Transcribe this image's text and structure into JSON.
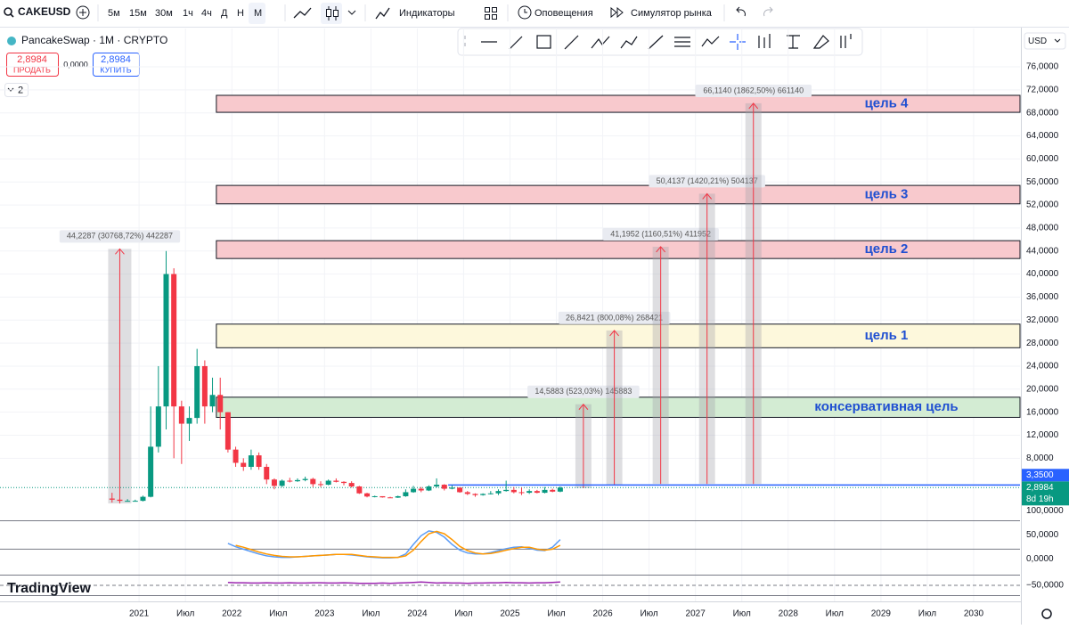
{
  "toolbar": {
    "symbol": "CAKEUSD",
    "intervals": [
      "5м",
      "15м",
      "30м",
      "1ч",
      "4ч",
      "Д",
      "Н",
      "М"
    ],
    "active_interval": 7,
    "indicators": "Индикаторы",
    "alerts": "Оповещения",
    "replay": "Симулятор рынка"
  },
  "legend": {
    "title": "PancakeSwap · 1M · CRYPTO",
    "sell_price": "2,8984",
    "sell_label": "ПРОДАТЬ",
    "spread": "0,0000",
    "buy_price": "2,8984",
    "buy_label": "КУПИТЬ",
    "indicators_count": "2"
  },
  "currency": "USD",
  "logo": "TradingView",
  "chart_data": {
    "type": "candlestick",
    "up_color": "#089981",
    "down_color": "#f23645",
    "grid": true,
    "x": [
      "2020-09",
      "2020-10",
      "2020-11",
      "2020-12",
      "2021-01",
      "2021-02",
      "2021-03",
      "2021-04",
      "2021-05",
      "2021-06",
      "2021-07",
      "2021-08",
      "2021-09",
      "2021-10",
      "2021-11",
      "2021-12",
      "2022-01",
      "2022-02",
      "2022-03",
      "2022-04",
      "2022-05",
      "2022-06",
      "2022-07",
      "2022-08",
      "2022-09",
      "2022-10",
      "2022-11",
      "2022-12",
      "2023-01",
      "2023-02",
      "2023-03",
      "2023-04",
      "2023-05",
      "2023-06",
      "2023-07",
      "2023-08",
      "2023-09",
      "2023-10",
      "2023-11",
      "2023-12",
      "2024-01",
      "2024-02",
      "2024-03",
      "2024-04",
      "2024-05",
      "2024-06",
      "2024-07",
      "2024-08",
      "2024-09",
      "2024-10",
      "2024-11",
      "2024-12",
      "2025-01",
      "2025-02",
      "2025-03",
      "2025-04",
      "2025-05",
      "2025-06",
      "2025-07"
    ],
    "open": [
      1,
      0.8,
      0.6,
      0.6,
      0.6,
      1.3,
      10,
      17,
      40,
      17,
      14,
      15,
      24,
      17,
      19,
      16,
      9.5,
      7.2,
      6.5,
      8.5,
      6.5,
      4.3,
      3.2,
      4.1,
      4,
      4.2,
      4.4,
      3.5,
      3.4,
      4.1,
      3.9,
      3.7,
      3.1,
      1.9,
      1.35,
      1.4,
      1.2,
      1.15,
      1.4,
      2.1,
      2.7,
      2.4,
      3.1,
      3.4,
      2.7,
      2.9,
      2.1,
      1.8,
      1.6,
      1.8,
      1.9,
      2.3,
      2.5,
      2.1,
      2,
      2.3,
      2,
      2.5,
      2.2
    ],
    "high": [
      2,
      1,
      0.9,
      0.8,
      1.5,
      17,
      24,
      44,
      41,
      18,
      17,
      27,
      25,
      22,
      22,
      16,
      10,
      8,
      9.5,
      9,
      7,
      4.5,
      4.3,
      4.6,
      4.5,
      4.8,
      4.6,
      4,
      4.3,
      4.5,
      4,
      4,
      3.2,
      2,
      1.5,
      1.4,
      1.3,
      1.5,
      2.6,
      3.2,
      3,
      3.3,
      4.5,
      3.5,
      3.3,
      2.9,
      2.3,
      1.9,
      1.9,
      2.3,
      2.6,
      4.1,
      3,
      2.9,
      2.6,
      2.5,
      3,
      2.7,
      3.1
    ],
    "low": [
      0.3,
      0.5,
      0.5,
      0.5,
      0.5,
      1.2,
      9,
      13,
      8,
      7,
      11,
      14,
      14,
      16,
      13,
      9,
      6.5,
      5.8,
      6,
      6,
      3.5,
      2.6,
      3,
      3.8,
      3.9,
      4,
      3,
      3,
      3.3,
      3.8,
      3.3,
      2.9,
      1.8,
      1.2,
      1.2,
      1.15,
      1.1,
      1.1,
      1.3,
      2,
      2.1,
      2.3,
      2.9,
      2.4,
      2.6,
      2,
      1.6,
      1.3,
      1.5,
      1.7,
      1.6,
      2.2,
      1.9,
      1.6,
      1.8,
      1.9,
      1.9,
      2.1,
      2.1
    ],
    "close": [
      0.8,
      0.6,
      0.6,
      0.6,
      1.3,
      10,
      17,
      40,
      17,
      14,
      15,
      24,
      17,
      19,
      16,
      9.5,
      7.2,
      6.5,
      8.5,
      6.5,
      4.3,
      3.2,
      4.1,
      4,
      4.2,
      4.4,
      3.5,
      3.4,
      4.1,
      3.9,
      3.7,
      3.1,
      1.9,
      1.35,
      1.4,
      1.2,
      1.15,
      1.4,
      2.1,
      2.7,
      2.4,
      3.1,
      3.4,
      2.7,
      2.9,
      2.1,
      1.8,
      1.6,
      1.8,
      1.9,
      2.3,
      2.5,
      2.1,
      2,
      2.3,
      2,
      2.5,
      2.2,
      2.9
    ],
    "xlim": [
      "2019-07",
      "2030-07"
    ],
    "xticks": [
      {
        "value": "2021-01",
        "label": "2021"
      },
      {
        "value": "2021-07",
        "label": "Июл"
      },
      {
        "value": "2022-01",
        "label": "2022"
      },
      {
        "value": "2022-07",
        "label": "Июл"
      },
      {
        "value": "2023-01",
        "label": "2023"
      },
      {
        "value": "2023-07",
        "label": "Июл"
      },
      {
        "value": "2024-01",
        "label": "2024"
      },
      {
        "value": "2024-07",
        "label": "Июл"
      },
      {
        "value": "2025-01",
        "label": "2025"
      },
      {
        "value": "2025-07",
        "label": "Июл"
      },
      {
        "value": "2026-01",
        "label": "2026"
      },
      {
        "value": "2026-07",
        "label": "Июл"
      },
      {
        "value": "2027-01",
        "label": "2027"
      },
      {
        "value": "2027-07",
        "label": "Июл"
      },
      {
        "value": "2028-01",
        "label": "2028"
      },
      {
        "value": "2028-07",
        "label": "Июл"
      },
      {
        "value": "2029-01",
        "label": "2029"
      },
      {
        "value": "2029-07",
        "label": "Июл"
      },
      {
        "value": "2030-01",
        "label": "2030"
      }
    ],
    "ylim": [
      -2.63,
      82.66
    ],
    "yticks": [
      {
        "value": 8,
        "label": "8,0000"
      },
      {
        "value": 12,
        "label": "12,0000"
      },
      {
        "value": 16,
        "label": "16,0000"
      },
      {
        "value": 20,
        "label": "20,0000"
      },
      {
        "value": 24,
        "label": "24,0000"
      },
      {
        "value": 28,
        "label": "28,0000"
      },
      {
        "value": 32,
        "label": "32,0000"
      },
      {
        "value": 36,
        "label": "36,0000"
      },
      {
        "value": 40,
        "label": "40,0000"
      },
      {
        "value": 44,
        "label": "44,0000"
      },
      {
        "value": 48,
        "label": "48,0000"
      },
      {
        "value": 52,
        "label": "52,0000"
      },
      {
        "value": 56,
        "label": "56,0000"
      },
      {
        "value": 60,
        "label": "60,0000"
      },
      {
        "value": 64,
        "label": "64,0000"
      },
      {
        "value": 68,
        "label": "68,0000"
      },
      {
        "value": 72,
        "label": "72,0000"
      },
      {
        "value": 76,
        "label": "76,0000"
      }
    ],
    "price_lines": [
      {
        "value": 3.35,
        "label": "3,3500",
        "color": "#2962ff",
        "start": "2024-05"
      },
      {
        "value": 2.8984,
        "label": "2,8984",
        "color": "#089981",
        "countdown": "8d 19h"
      }
    ],
    "zones": [
      {
        "name": "цель 4",
        "from": 68.1,
        "to": 71.05,
        "start": "2021-11",
        "color": "#f8c9cd"
      },
      {
        "name": "цель 3",
        "from": 52.2,
        "to": 55.4,
        "start": "2021-11",
        "color": "#f8c9cd"
      },
      {
        "name": "цель 2",
        "from": 42.7,
        "to": 45.8,
        "start": "2021-11",
        "color": "#f8c9cd"
      },
      {
        "name": "цель 1",
        "from": 27.2,
        "to": 31.3,
        "start": "2021-11",
        "color": "#fdf8dc"
      },
      {
        "name": "консервативная цель",
        "from": 15.1,
        "to": 18.6,
        "start": "2021-11",
        "color": "#d3ecd3"
      }
    ],
    "measurements": [
      {
        "x": "2020-10",
        "from": 0.1437,
        "to": 44.37,
        "label": "44,2287 (30768,72%) 442287"
      },
      {
        "x": "2025-10",
        "from": 2.789,
        "to": 17.377,
        "label": "14,5883 (523,03%) 145883"
      },
      {
        "x": "2026-02",
        "from": 3.355,
        "to": 30.197,
        "label": "26,8421 (800,08%) 268421"
      },
      {
        "x": "2026-08",
        "from": 3.55,
        "to": 44.745,
        "label": "41,1952 (1160,51%) 411952"
      },
      {
        "x": "2027-02",
        "from": 3.55,
        "to": 53.964,
        "label": "50,4137 (1420,21%) 504137"
      },
      {
        "x": "2027-08",
        "from": 3.55,
        "to": 69.664,
        "label": "66,1140 (1862,50%) 661140"
      }
    ],
    "oscillator": {
      "ylim": [
        -33,
        80
      ],
      "yticks": [
        {
          "value": 100,
          "label": "100,0000"
        },
        {
          "value": 50,
          "label": "50,0000"
        },
        {
          "value": 0,
          "label": "0,0000"
        }
      ],
      "bands": [
        80,
        20
      ],
      "series": [
        {
          "color": "#5b9cf6",
          "values": [
            null,
            null,
            null,
            null,
            null,
            null,
            null,
            null,
            null,
            null,
            null,
            null,
            null,
            null,
            null,
            32,
            25,
            20,
            15,
            10,
            6,
            4,
            3,
            3,
            4,
            5,
            6,
            7,
            8,
            9,
            9,
            8,
            6,
            4,
            3,
            2,
            2,
            3,
            10,
            30,
            48,
            58,
            55,
            45,
            30,
            18,
            12,
            10,
            10,
            13,
            17,
            21,
            24,
            25,
            22,
            18,
            17,
            24,
            40
          ]
        },
        {
          "color": "#ff9800",
          "values": [
            null,
            null,
            null,
            null,
            null,
            null,
            null,
            null,
            null,
            null,
            null,
            null,
            null,
            null,
            null,
            null,
            28,
            24,
            19,
            14,
            10,
            7,
            5,
            4,
            4,
            5,
            6,
            7,
            8,
            9,
            9,
            9,
            7,
            5,
            4,
            3,
            3,
            3,
            6,
            18,
            36,
            52,
            57,
            52,
            40,
            26,
            17,
            12,
            10,
            11,
            14,
            18,
            21,
            24,
            24,
            20,
            18,
            20,
            28
          ]
        }
      ]
    },
    "rsi": {
      "ylim": [
        -80,
        -20
      ],
      "yticks": [
        {
          "value": -50,
          "label": "−50,0000"
        }
      ],
      "color": "#9c27b0",
      "values": [
        null,
        null,
        null,
        null,
        null,
        null,
        null,
        null,
        null,
        null,
        null,
        null,
        null,
        null,
        null,
        -41,
        -42,
        -42,
        -43,
        -43,
        -42,
        -43,
        -43,
        -42,
        -43,
        -43,
        -42,
        -42,
        -43,
        -43,
        -42,
        -43,
        -44,
        -44,
        -44,
        -43,
        -44,
        -43,
        -42,
        -41,
        -40,
        -41,
        -43,
        -42,
        -43,
        -43,
        -44,
        -43,
        -43,
        -42,
        -42,
        -41,
        -42,
        -42,
        -43,
        -42,
        -42,
        -41,
        -40
      ]
    }
  }
}
